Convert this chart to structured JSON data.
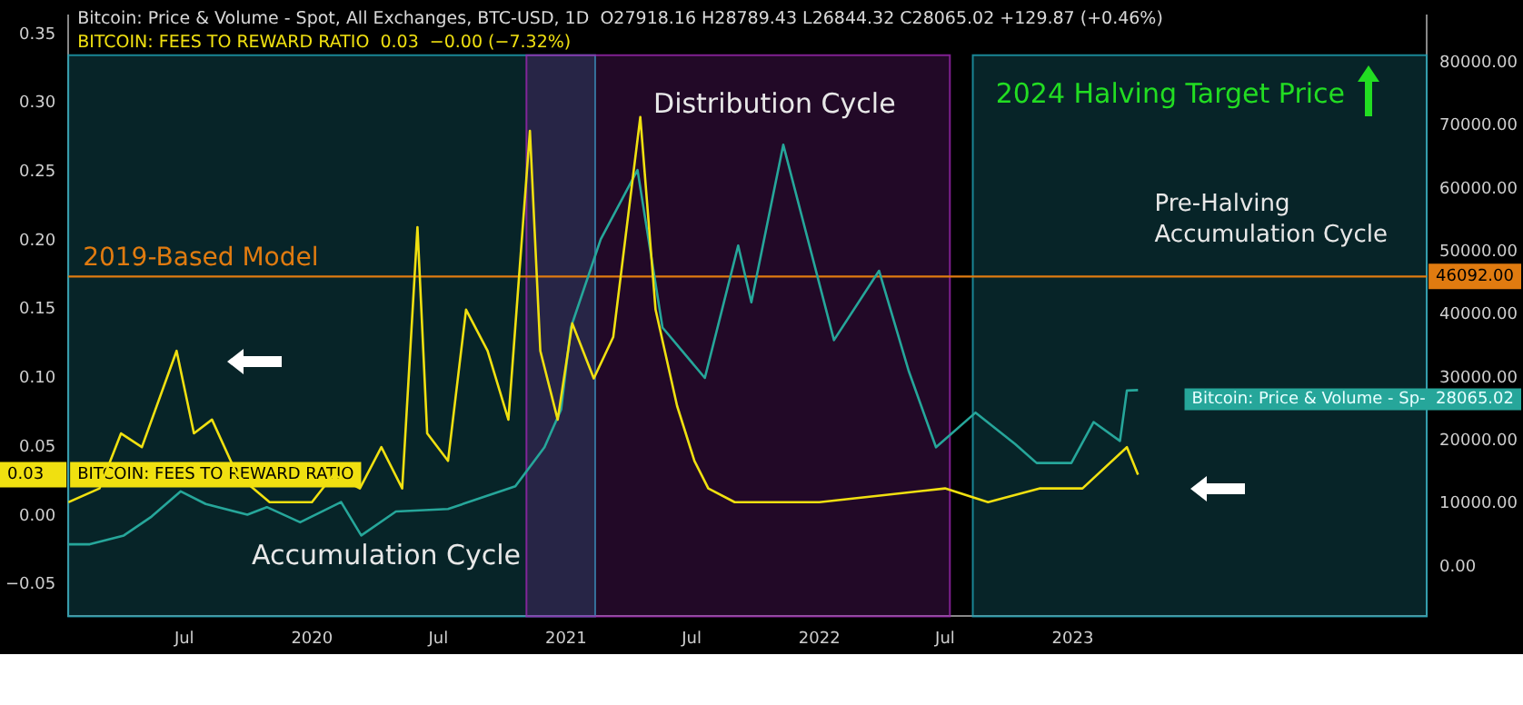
{
  "chart_data": {
    "type": "line",
    "title": "Bitcoin: Price & Volume - Spot, All Exchanges, BTC-USD, 1D  O27918.16 H28789.43 L26844.32 C28065.02 +129.87 (+0.46%)",
    "subtitle": "BITCOIN: FEES TO REWARD RATIO  0.03  −0.00 (−7.32%)",
    "series": [
      {
        "name": "BITCOIN: FEES TO REWARD RATIO",
        "color": "#f0e010",
        "axis": "y",
        "x": [
          "2019-01-15",
          "2019-03-01",
          "2019-04-01",
          "2019-05-01",
          "2019-06-20",
          "2019-07-15",
          "2019-08-10",
          "2019-09-15",
          "2019-11-01",
          "2020-01-01",
          "2020-02-01",
          "2020-03-10",
          "2020-04-10",
          "2020-05-10",
          "2020-06-01",
          "2020-06-15",
          "2020-07-15",
          "2020-08-10",
          "2020-09-10",
          "2020-10-10",
          "2020-11-10",
          "2020-11-25",
          "2020-12-20",
          "2021-01-10",
          "2021-02-10",
          "2021-03-10",
          "2021-04-18",
          "2021-05-10",
          "2021-06-10",
          "2021-07-05",
          "2021-07-25",
          "2021-09-01",
          "2021-11-01",
          "2022-01-01",
          "2022-04-01",
          "2022-07-01",
          "2022-09-01",
          "2022-11-15",
          "2023-01-15",
          "2023-03-20",
          "2023-04-05"
        ],
        "values": [
          0.01,
          0.02,
          0.06,
          0.05,
          0.12,
          0.06,
          0.07,
          0.03,
          0.01,
          0.01,
          0.03,
          0.02,
          0.05,
          0.02,
          0.21,
          0.06,
          0.04,
          0.15,
          0.12,
          0.07,
          0.28,
          0.12,
          0.07,
          0.14,
          0.1,
          0.13,
          0.29,
          0.15,
          0.08,
          0.04,
          0.02,
          0.01,
          0.01,
          0.01,
          0.015,
          0.02,
          0.01,
          0.02,
          0.02,
          0.05,
          0.03
        ]
      },
      {
        "name": "Bitcoin: Price & Volume - Sp-",
        "color": "#26a69a",
        "axis": "y2",
        "x": [
          "2019-01-15",
          "2019-02-15",
          "2019-04-05",
          "2019-05-15",
          "2019-06-26",
          "2019-08-01",
          "2019-09-30",
          "2019-10-28",
          "2019-12-15",
          "2020-02-12",
          "2020-03-12",
          "2020-05-01",
          "2020-07-15",
          "2020-10-20",
          "2020-12-01",
          "2020-12-25",
          "2021-01-08",
          "2021-02-20",
          "2021-04-14",
          "2021-05-20",
          "2021-07-20",
          "2021-09-06",
          "2021-09-25",
          "2021-11-10",
          "2022-01-22",
          "2022-03-28",
          "2022-05-10",
          "2022-06-18",
          "2022-08-14",
          "2022-10-10",
          "2022-11-10",
          "2022-12-30",
          "2023-01-31",
          "2023-03-10",
          "2023-03-20",
          "2023-04-05"
        ],
        "values": [
          3600,
          3600,
          5000,
          8000,
          12000,
          10000,
          8300,
          9500,
          7100,
          10300,
          5000,
          8800,
          9200,
          12800,
          19000,
          25000,
          38000,
          52000,
          63000,
          38000,
          30000,
          51000,
          42000,
          67000,
          36000,
          47000,
          31000,
          19000,
          24500,
          19500,
          16500,
          16500,
          23000,
          20000,
          28000,
          28065.02
        ],
        "value_labels": [
          null,
          null,
          null,
          null,
          null,
          null,
          null,
          null,
          null,
          null,
          null,
          null,
          null,
          null,
          null,
          null,
          null,
          null,
          null,
          null,
          null,
          null,
          null,
          null,
          null,
          null,
          null,
          null,
          null,
          null,
          null,
          null,
          null,
          null,
          null,
          "28065.02"
        ]
      }
    ],
    "xlim": [
      "2019-01-15",
      "2024-05-25"
    ],
    "xticks": [
      {
        "value": "2019-07-01",
        "label": "Jul"
      },
      {
        "value": "2020-01-01",
        "label": "2020"
      },
      {
        "value": "2020-07-01",
        "label": "Jul"
      },
      {
        "value": "2021-01-01",
        "label": "2021"
      },
      {
        "value": "2021-07-01",
        "label": "Jul"
      },
      {
        "value": "2022-01-01",
        "label": "2022"
      },
      {
        "value": "2022-07-01",
        "label": "Jul"
      },
      {
        "value": "2023-01-01",
        "label": "2023"
      }
    ],
    "ylim": [
      -0.073,
      0.364
    ],
    "yticks": [
      {
        "value": -0.05,
        "label": "−0.05"
      },
      {
        "value": 0,
        "label": "0.00"
      },
      {
        "value": 0.05,
        "label": "0.05"
      },
      {
        "value": 0.1,
        "label": "0.10"
      },
      {
        "value": 0.15,
        "label": "0.15"
      },
      {
        "value": 0.2,
        "label": "0.20"
      },
      {
        "value": 0.25,
        "label": "0.25"
      },
      {
        "value": 0.3,
        "label": "0.30"
      },
      {
        "value": 0.35,
        "label": "0.35"
      }
    ],
    "y2lim": [
      -7830,
      87550
    ],
    "y2ticks": [
      {
        "value": 0,
        "label": "0.00"
      },
      {
        "value": 10000,
        "label": "10000.00"
      },
      {
        "value": 20000,
        "label": "20000.00"
      },
      {
        "value": 30000,
        "label": "30000.00"
      },
      {
        "value": 40000,
        "label": "40000.00"
      },
      {
        "value": 50000,
        "label": "50000.00"
      },
      {
        "value": 60000,
        "label": "60000.00"
      },
      {
        "value": 70000,
        "label": "70000.00"
      },
      {
        "value": 80000,
        "label": "80000.00"
      }
    ],
    "ref_lines": [
      {
        "axis": "y2",
        "value": 46092,
        "label": "2019-Based Model",
        "color": "#e07b10"
      }
    ],
    "bands": [
      {
        "axis": "x",
        "from": "2019-01-15",
        "to": "2021-02-12",
        "label": "Accumulation Cycle",
        "color": "#1fa3b5"
      },
      {
        "axis": "x",
        "from": "2020-11-05",
        "to": "2022-07-08",
        "label": "Distribution Cycle",
        "color": "#9c27b0"
      },
      {
        "axis": "x",
        "from": "2022-08-10",
        "to": "2024-05-25",
        "label": "Pre-Halving Accumulation Cycle",
        "color": "#1fa3b5"
      }
    ],
    "annotations": [
      "2024 Halving Target Price",
      "46092.00",
      "0.03"
    ],
    "grid": false,
    "legend": "left"
  }
}
